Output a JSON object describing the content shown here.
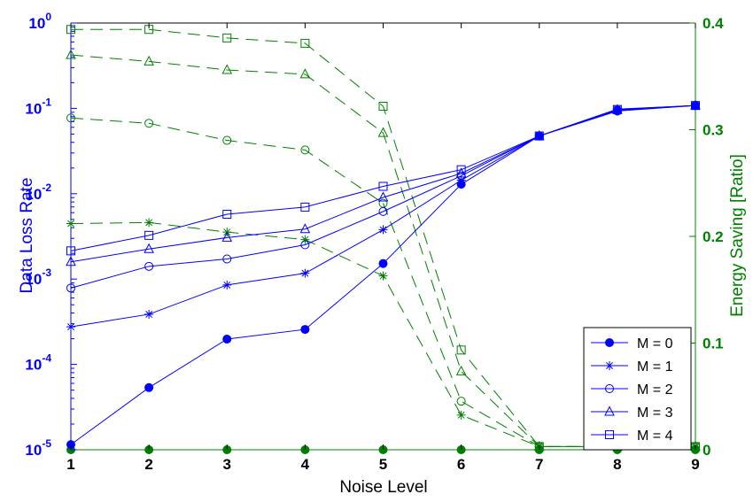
{
  "chart_data": {
    "type": "line",
    "xlabel": "Noise Level",
    "ylabel_left": "Data Loss Rate",
    "ylabel_right": "Energy Saving [Ratio]",
    "x": [
      1,
      2,
      3,
      4,
      5,
      6,
      7,
      8,
      9
    ],
    "xlim": [
      1,
      9
    ],
    "left_axis": {
      "scale": "log",
      "ylim": [
        1e-05,
        1
      ],
      "color": "#0000ff",
      "ticks": [
        {
          "base": "10",
          "exp": "-5"
        },
        {
          "base": "10",
          "exp": "-4"
        },
        {
          "base": "10",
          "exp": "-3"
        },
        {
          "base": "10",
          "exp": "-2"
        },
        {
          "base": "10",
          "exp": "-1"
        },
        {
          "base": "10",
          "exp": "0"
        }
      ]
    },
    "right_axis": {
      "scale": "linear",
      "ylim": [
        0,
        0.4
      ],
      "color": "#008000",
      "ticks": [
        "0",
        "0.1",
        "0.2",
        "0.3",
        "0.4"
      ]
    },
    "x_ticks": [
      "1",
      "2",
      "3",
      "4",
      "5",
      "6",
      "7",
      "8",
      "9"
    ],
    "legend_position": "bottom-right",
    "data_loss_series": [
      {
        "name": "M = 0",
        "marker": "filled-circle",
        "values": [
          1.15e-05,
          5.35e-05,
          0.000198,
          0.000257,
          0.00152,
          0.0129,
          0.0475,
          0.093,
          0.108
        ]
      },
      {
        "name": "M = 1",
        "marker": "asterisk",
        "values": [
          0.000276,
          0.000387,
          0.000852,
          0.00117,
          0.00379,
          0.0144,
          0.0475,
          0.098,
          0.108
        ]
      },
      {
        "name": "M = 2",
        "marker": "open-circle",
        "values": [
          0.000785,
          0.00141,
          0.00172,
          0.00252,
          0.00619,
          0.0162,
          0.0475,
          0.095,
          0.108
        ]
      },
      {
        "name": "M = 3",
        "marker": "triangle",
        "values": [
          0.00159,
          0.00225,
          0.00306,
          0.00385,
          0.00905,
          0.0173,
          0.0475,
          0.096,
          0.108
        ]
      },
      {
        "name": "M = 4",
        "marker": "square",
        "values": [
          0.00214,
          0.00325,
          0.00575,
          0.00697,
          0.0122,
          0.0191,
          0.0475,
          0.097,
          0.108
        ]
      }
    ],
    "energy_saving_series": [
      {
        "marker": "filled-circle",
        "values": [
          0,
          0,
          0,
          0,
          0,
          0,
          0,
          0,
          0
        ]
      },
      {
        "marker": "asterisk",
        "values": [
          0.212,
          0.213,
          0.204,
          0.197,
          0.163,
          0.0325,
          0.003,
          0.003,
          0.003
        ]
      },
      {
        "marker": "open-circle",
        "values": [
          0.311,
          0.306,
          0.29,
          0.281,
          0.231,
          0.0455,
          0.003,
          0.003,
          0.003
        ]
      },
      {
        "marker": "triangle",
        "values": [
          0.37,
          0.364,
          0.356,
          0.352,
          0.297,
          0.0735,
          0.003,
          0.003,
          0.003
        ]
      },
      {
        "marker": "square",
        "values": [
          0.394,
          0.394,
          0.386,
          0.381,
          0.322,
          0.0935,
          0.003,
          0.003,
          0.003
        ]
      }
    ]
  }
}
